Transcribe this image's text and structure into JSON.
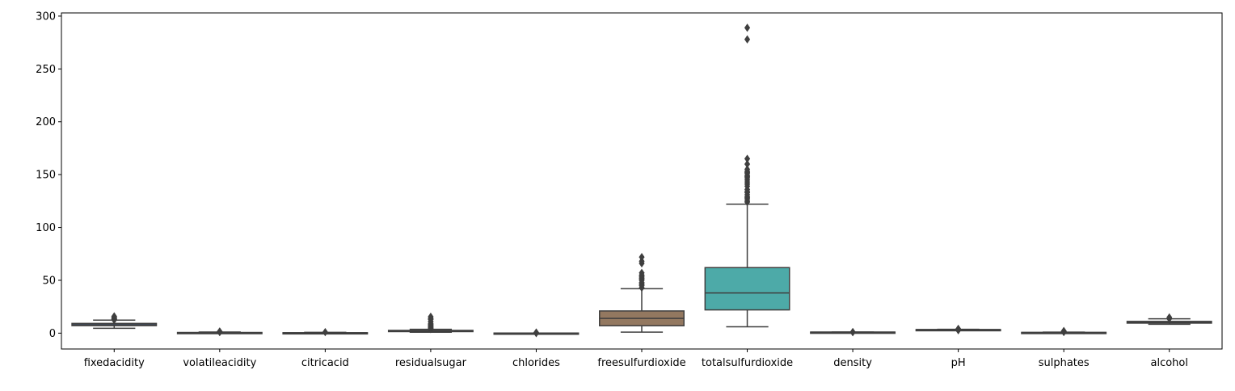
{
  "chart_data": {
    "type": "boxplot",
    "title": "",
    "xlabel": "",
    "ylabel": "",
    "ylim": [
      -15,
      303
    ],
    "yticks": [
      0,
      50,
      100,
      150,
      200,
      250,
      300
    ],
    "grid": false,
    "legend": "none",
    "stroke_color": "#3f3f3f",
    "categories": [
      {
        "name": "fixedacidity",
        "color": "#4c72b0",
        "whisker_low": 4.6,
        "q1": 7.1,
        "median": 7.9,
        "q3": 9.2,
        "whisker_high": 12.3,
        "outliers": [
          12.5,
          12.8,
          13.0,
          13.3,
          13.7,
          14.0,
          14.3,
          15.0,
          15.6,
          15.9
        ]
      },
      {
        "name": "volatileacidity",
        "color": "#dd8452",
        "whisker_low": 0.12,
        "q1": 0.39,
        "median": 0.52,
        "q3": 0.64,
        "whisker_high": 1.01,
        "outliers": [
          1.04,
          1.09,
          1.13,
          1.18,
          1.24,
          1.33,
          1.58
        ]
      },
      {
        "name": "citricacid",
        "color": "#55a868",
        "whisker_low": 0.0,
        "q1": 0.09,
        "median": 0.26,
        "q3": 0.42,
        "whisker_high": 0.79,
        "outliers": [
          1.0
        ]
      },
      {
        "name": "residualsugar",
        "color": "#c44e52",
        "whisker_low": 0.9,
        "q1": 1.9,
        "median": 2.2,
        "q3": 2.6,
        "whisker_high": 3.6,
        "outliers": [
          3.8,
          4.2,
          4.6,
          5.1,
          5.6,
          6.2,
          6.7,
          7.3,
          7.9,
          8.6,
          9.0,
          10.7,
          11.0,
          12.9,
          13.4,
          13.8,
          15.4,
          15.5
        ]
      },
      {
        "name": "chlorides",
        "color": "#8172b3",
        "whisker_low": 0.04,
        "q1": 0.07,
        "median": 0.079,
        "q3": 0.09,
        "whisker_high": 0.12,
        "outliers": [
          0.012,
          0.2,
          0.4,
          0.61
        ]
      },
      {
        "name": "freesulfurdioxide",
        "color": "#937860",
        "whisker_low": 1,
        "q1": 7,
        "median": 14,
        "q3": 21,
        "whisker_high": 42,
        "outliers": [
          43,
          45,
          46,
          47,
          48,
          50,
          51,
          52,
          53,
          54,
          55,
          57,
          66,
          68,
          72
        ]
      },
      {
        "name": "totalsulfurdioxide",
        "color": "#4daaa8",
        "whisker_low": 6,
        "q1": 22,
        "median": 38,
        "q3": 62,
        "whisker_high": 122,
        "outliers": [
          124,
          125,
          127,
          128,
          129,
          131,
          133,
          134,
          136,
          139,
          141,
          143,
          145,
          147,
          148,
          149,
          151,
          152,
          153,
          155,
          160,
          165,
          278,
          289
        ]
      },
      {
        "name": "density",
        "color": "#8c8c8c",
        "whisker_low": 0.992,
        "q1": 0.9956,
        "median": 0.9968,
        "q3": 0.9978,
        "whisker_high": 1.001,
        "outliers": [
          0.99,
          1.003,
          1.004
        ]
      },
      {
        "name": "pH",
        "color": "#ccb974",
        "whisker_low": 2.92,
        "q1": 3.21,
        "median": 3.31,
        "q3": 3.4,
        "whisker_high": 3.68,
        "outliers": [
          2.74,
          2.86,
          3.71,
          3.78,
          3.85,
          3.9,
          4.01
        ]
      },
      {
        "name": "sulphates",
        "color": "#64b5cd",
        "whisker_low": 0.33,
        "q1": 0.55,
        "median": 0.62,
        "q3": 0.73,
        "whisker_high": 1.0,
        "outliers": [
          1.05,
          1.12,
          1.2,
          1.36,
          1.59,
          1.95,
          2.0
        ]
      },
      {
        "name": "alcohol",
        "color": "#4c72b0",
        "whisker_low": 8.4,
        "q1": 9.5,
        "median": 10.2,
        "q3": 11.1,
        "whisker_high": 13.6,
        "outliers": [
          13.8,
          14.0,
          14.9
        ]
      }
    ]
  }
}
